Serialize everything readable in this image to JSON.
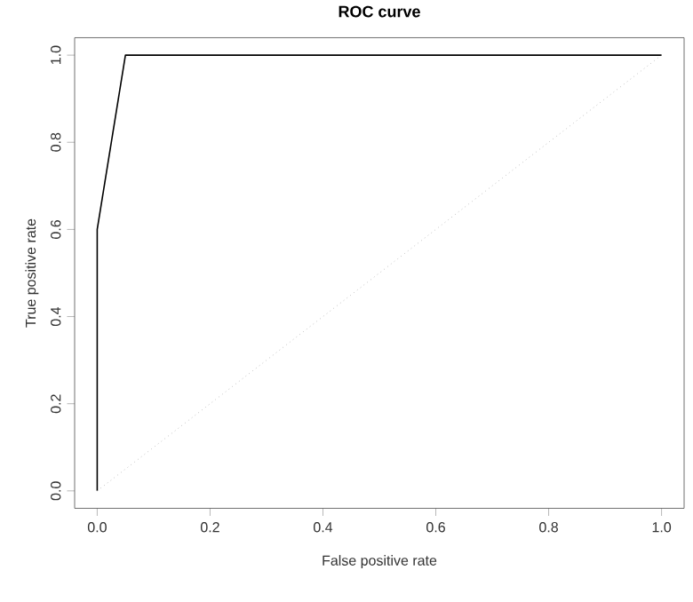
{
  "chart_data": {
    "type": "line",
    "title": "ROC curve",
    "xlabel": "False positive rate",
    "ylabel": "True positive rate",
    "series": [
      {
        "x": [
          0,
          0,
          0.05,
          1
        ],
        "values": [
          0,
          0.6,
          1.0,
          1.0
        ],
        "color": "#000000",
        "line_style": "solid"
      },
      {
        "x": [
          0,
          1
        ],
        "values": [
          0,
          1
        ],
        "color": "#a0a0a0",
        "line_style": "dotted"
      }
    ],
    "xlim": [
      -0.04,
      1.04
    ],
    "ylim": [
      -0.04,
      1.04
    ],
    "xticks": [
      {
        "value": 0,
        "label": "0.0"
      },
      0.2,
      0.4,
      0.6,
      0.8,
      {
        "value": 1,
        "label": "1.0"
      }
    ],
    "yticks": [
      {
        "value": 0,
        "label": "0.0"
      },
      0.2,
      0.4,
      0.6,
      0.8,
      {
        "value": 1,
        "label": "1.0"
      }
    ],
    "marker": "none",
    "grid": false
  }
}
